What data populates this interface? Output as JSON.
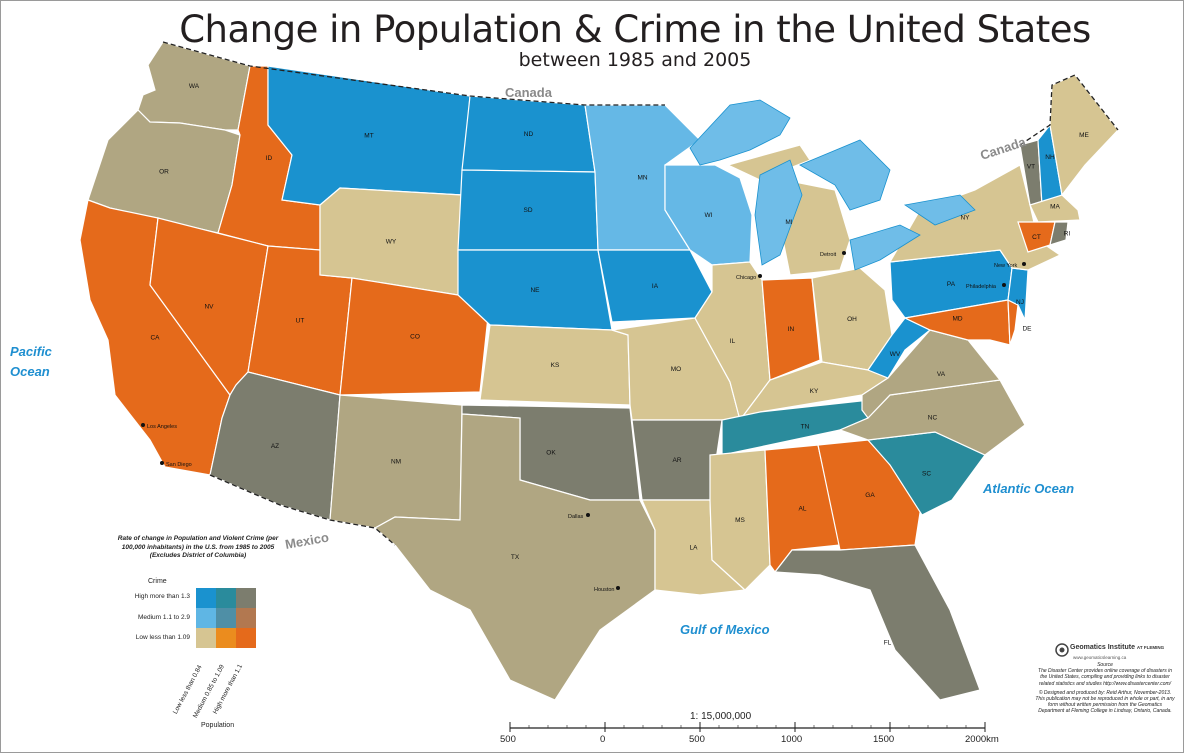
{
  "title": "Change in Population & Crime in the United States",
  "subtitle": "between 1985 and 2005",
  "colors": {
    "low_low": "#d6c592",
    "low_med": "#eb8c1e",
    "low_high": "#e56a1b",
    "med_low": "#5fb6e4",
    "med_med": "#4f8fa6",
    "med_high": "#b27850",
    "high_low": "#1a92cf",
    "high_med": "#2a8b9c",
    "high_high": "#7c7d6e",
    "tan": "#d6c592",
    "olive": "#b0a682",
    "dark": "#7c7d6e",
    "orange": "#e56a1b",
    "blue": "#1a92cf",
    "lightblue": "#65b8e6",
    "teal": "#2a8b9c",
    "lakes": "#6fbde8"
  },
  "states": [
    {
      "abbr": "WA",
      "color": "olive"
    },
    {
      "abbr": "OR",
      "color": "olive"
    },
    {
      "abbr": "CA",
      "color": "orange"
    },
    {
      "abbr": "ID",
      "color": "orange"
    },
    {
      "abbr": "NV",
      "color": "orange"
    },
    {
      "abbr": "UT",
      "color": "orange"
    },
    {
      "abbr": "AZ",
      "color": "dark"
    },
    {
      "abbr": "MT",
      "color": "blue"
    },
    {
      "abbr": "WY",
      "color": "tan"
    },
    {
      "abbr": "CO",
      "color": "orange"
    },
    {
      "abbr": "NM",
      "color": "olive"
    },
    {
      "abbr": "ND",
      "color": "blue"
    },
    {
      "abbr": "SD",
      "color": "blue"
    },
    {
      "abbr": "NE",
      "color": "blue"
    },
    {
      "abbr": "KS",
      "color": "tan"
    },
    {
      "abbr": "OK",
      "color": "dark"
    },
    {
      "abbr": "TX",
      "color": "olive"
    },
    {
      "abbr": "MN",
      "color": "lightblue"
    },
    {
      "abbr": "IA",
      "color": "blue"
    },
    {
      "abbr": "MO",
      "color": "tan"
    },
    {
      "abbr": "AR",
      "color": "dark"
    },
    {
      "abbr": "LA",
      "color": "tan"
    },
    {
      "abbr": "WI",
      "color": "lightblue"
    },
    {
      "abbr": "IL",
      "color": "tan"
    },
    {
      "abbr": "MI",
      "color": "tan"
    },
    {
      "abbr": "IN",
      "color": "orange"
    },
    {
      "abbr": "OH",
      "color": "tan"
    },
    {
      "abbr": "KY",
      "color": "tan"
    },
    {
      "abbr": "TN",
      "color": "teal"
    },
    {
      "abbr": "MS",
      "color": "tan"
    },
    {
      "abbr": "AL",
      "color": "orange"
    },
    {
      "abbr": "GA",
      "color": "orange"
    },
    {
      "abbr": "FL",
      "color": "dark"
    },
    {
      "abbr": "SC",
      "color": "teal"
    },
    {
      "abbr": "NC",
      "color": "olive"
    },
    {
      "abbr": "VA",
      "color": "olive"
    },
    {
      "abbr": "WV",
      "color": "blue"
    },
    {
      "abbr": "PA",
      "color": "blue"
    },
    {
      "abbr": "NY",
      "color": "tan"
    },
    {
      "abbr": "VT",
      "color": "dark"
    },
    {
      "abbr": "NH",
      "color": "blue"
    },
    {
      "abbr": "ME",
      "color": "tan"
    },
    {
      "abbr": "MA",
      "color": "tan"
    },
    {
      "abbr": "CT",
      "color": "orange"
    },
    {
      "abbr": "RI",
      "color": "dark"
    },
    {
      "abbr": "NJ",
      "color": "blue"
    },
    {
      "abbr": "DE",
      "color": "orange"
    },
    {
      "abbr": "MD",
      "color": "orange"
    }
  ],
  "cities": [
    "Los Angeles",
    "San Diego",
    "Dallas",
    "Houston",
    "Chicago",
    "Detroit",
    "New York",
    "Philadelphia"
  ],
  "water_labels": {
    "pacific_1": "Pacific",
    "pacific_2": "Ocean",
    "atlantic": "Atlantic Ocean",
    "gulf": "Gulf of Mexico"
  },
  "country_labels": {
    "canada_north": "Canada",
    "canada_east": "Canada",
    "mexico": "Mexico"
  },
  "legend": {
    "title": "Rate of change in Population and Violent Crime (per 100,000 inhabitants) in the U.S. from 1985 to 2005 (Excludes District of Columbia)",
    "crime_label": "Crime",
    "crime_rows": [
      "High more than 1.3",
      "Medium 1.1 to 2.9",
      "Low less than 1.09"
    ],
    "population_cols": [
      "Low less than 0.84",
      "Medium 0.85 to 1.09",
      "High more than 1.1"
    ],
    "population_label": "Population"
  },
  "scale": {
    "label": "1: 15,000,000",
    "ticks": [
      "500",
      "0",
      "500",
      "1000",
      "1500",
      "2000km"
    ]
  },
  "credits": {
    "logo": "Geomatics Institute",
    "logo_sub": "AT FLEMING",
    "url": "www.geomaticslearning.ca",
    "source_head": "Source",
    "source_text": "The Disaster Center provides online coverage of disasters in the United States, compiling and providing links to disaster related statistics and studies http://www.disastercenter.com/",
    "designed": "© Designed and produced by: Reid Arthur, November-2013. This publication may not be reproduced in whole or part, in any form without written permission from the Geomatics Department at Fleming College in Lindsay, Ontario, Canada."
  }
}
